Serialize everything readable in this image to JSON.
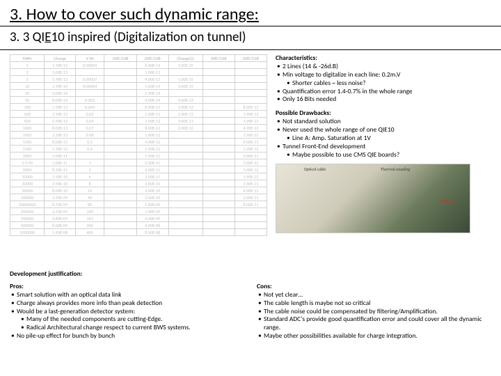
{
  "title": "3. How to cover such dynamic range:",
  "subtitle_pre": "3. 3 QI",
  "subtitle_under": "E",
  "subtitle_post": "10 inspired (Digitalization on tunnel)",
  "table": {
    "headers": [
      "MIPs",
      "Charge",
      "V IN",
      "10fC/LSB",
      "20fC/LSB",
      "Charge(2)",
      "10fC/LSB",
      "20fC/LSB"
    ],
    "rows": [
      [
        "1",
        "1.90E-13",
        "0.00004",
        "",
        "6.00E-14",
        "1.00E-15",
        "",
        ""
      ],
      [
        "2",
        "3.00E-13",
        "",
        "",
        "1.00E-13",
        "",
        "",
        ""
      ],
      [
        "5",
        "5.90E-13",
        "0.00007",
        "",
        "4.00E-13",
        "1.00E-15",
        "",
        ""
      ],
      [
        "10",
        "1.90E-14",
        "0.00004",
        "",
        "1.00E-14",
        "3.00E-15",
        "",
        ""
      ],
      [
        "20",
        "3.00E-14",
        "",
        "",
        "1.90E-14",
        "",
        "",
        ""
      ],
      [
        "50",
        "8.00E-14",
        "0.002",
        "",
        "4.00E-14",
        "4.00E-13",
        "",
        ""
      ],
      [
        "100",
        "1.90E-13",
        "0.004",
        "",
        "6.00E-13",
        "3.00E-13",
        "",
        "8.00E-13"
      ],
      [
        "200",
        "3.90E-13",
        "0.02",
        "",
        "1.00E-13",
        "2.00E-13",
        "",
        "1.90E-13"
      ],
      [
        "500",
        "5.90E-13",
        "0.04",
        "",
        "1.00E-12",
        "3.00E-13",
        "",
        "3.90E-13"
      ],
      [
        "1000",
        "8.00E-13",
        "0.07",
        "",
        "8.00E-12",
        "2.00E-12",
        "",
        "4.90E-12"
      ],
      [
        "1002",
        "3.20E-13",
        "0.08",
        "",
        "1.60E-12",
        "",
        "",
        "1.50E-13"
      ],
      [
        "1200",
        "8.00E-13",
        "0.2",
        "",
        "4.00E-12",
        "",
        "",
        "4.00E-11"
      ],
      [
        "1500",
        "1.90E-12",
        "0.4",
        "",
        "1.90E-12",
        "",
        "",
        "1.90E-12"
      ],
      [
        "2000",
        "3.00E-11",
        "",
        "",
        "1.90E-11",
        "",
        "",
        "3.00E-11"
      ],
      [
        "2 5 00",
        "1.00E-11",
        "1",
        "",
        "2.00E-11",
        "",
        "",
        "3.00E-11"
      ],
      [
        "5000",
        "8.30E-11",
        "2",
        "",
        "4.00E-11",
        "",
        "",
        "3.00E-12"
      ],
      [
        "10000",
        "1.90E-10",
        "4",
        "",
        "3.00E-11",
        "",
        "",
        "1.90E-12"
      ],
      [
        "20000",
        "3.90E-10",
        "8",
        "",
        "1.60E-10",
        "",
        "",
        "1.50E-11"
      ],
      [
        "30000",
        "8.00E-10",
        "10",
        "",
        "4.00E-10",
        "",
        "",
        "4.00E-11"
      ],
      [
        "100000",
        "3.90E-09",
        "40",
        "",
        "3.00E-10",
        "",
        "",
        "3.00E-11"
      ],
      [
        "10000000",
        "8.70E-09",
        "80",
        "",
        "1.60E-09",
        "",
        "",
        "8.00E-11"
      ],
      [
        "250000",
        "4.30E-09",
        "100",
        "",
        "1.00E-09",
        "",
        "",
        ""
      ],
      [
        "250000",
        "4.80E-09",
        "163",
        "",
        "4.00E-09",
        "",
        "",
        ""
      ],
      [
        "500000",
        "8.00E-09",
        "200",
        "",
        "4.00E-08",
        "",
        "",
        ""
      ],
      [
        "1000000",
        "1.90E-08",
        "400",
        "",
        "8.00E-08",
        "",
        "",
        ""
      ]
    ],
    "text_color": "#bfbfbf",
    "border_color": "#d0d0d0"
  },
  "characteristics": {
    "heading": "Characteristics:",
    "items": [
      {
        "t": "2 Lines (14 & -26d.B)"
      },
      {
        "t": "Min voltage to digitalize in each line: 0.2m.V",
        "sub": [
          "Shorter cables ~ less noise?"
        ]
      },
      {
        "t": "Quantification error 1.4-0.7% in the whole range"
      },
      {
        "t": "Only 16 Bits needed"
      }
    ]
  },
  "drawbacks": {
    "heading": "Possible Drawbacks:",
    "items": [
      {
        "t": "Not standard solution"
      },
      {
        "t": "Never used the whole range of one QIE10",
        "sub": [
          "Line A: Amp. Saturation at 1V"
        ]
      },
      {
        "t": "Tunnel Front-End development",
        "sub": [
          "Maybe possible to use CMS QIE boards?"
        ]
      }
    ]
  },
  "hw": {
    "labels": [
      "Optical cable",
      "Thermal coupling",
      "QIE Board"
    ]
  },
  "dev": {
    "heading": "Development justification:",
    "pros": {
      "heading": "Pros:",
      "items": [
        {
          "t": "Smart solution with an optical data link"
        },
        {
          "t": "Charge always provides more info than peak detection"
        },
        {
          "t": "Would be a last-generation detector system:",
          "sub": [
            "Many of the needed components are cutting-Edge.",
            "Radical Architectural change respect to current BWS systems."
          ]
        },
        {
          "t": "No pile-up effect for bunch by bunch"
        }
      ]
    },
    "cons": {
      "heading": "Cons:",
      "items": [
        {
          "t": "Not yet clear…"
        },
        {
          "t": "The cable length is maybe not so critical"
        },
        {
          "t": "The cable noise could be compensated by filtering/Amplification."
        },
        {
          "t": "Standard ADC's provide good quantification error and could cover all the dynamic range."
        },
        {
          "t": "Maybe other possibilities available for charge integration."
        }
      ]
    }
  }
}
